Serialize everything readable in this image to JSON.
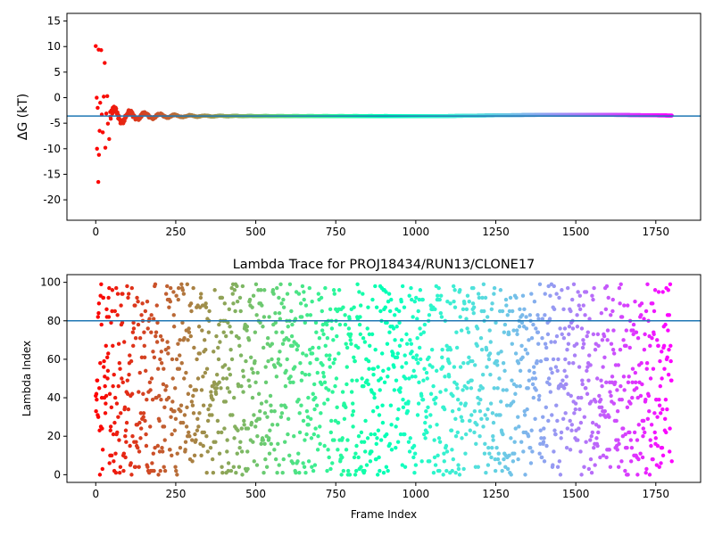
{
  "chart_data": [
    {
      "type": "scatter",
      "title": "",
      "xlabel": "",
      "ylabel": "ΔG (kT)",
      "xlim": [
        -90,
        1890
      ],
      "ylim": [
        -24,
        16.5
      ],
      "xticks": [
        0,
        250,
        500,
        750,
        1000,
        1250,
        1500,
        1750
      ],
      "yticks": [
        -20,
        -15,
        -10,
        -5,
        0,
        5,
        10,
        15
      ],
      "grid": false,
      "colormap": "rainbow (frame index)",
      "reference_line": {
        "y": -3.6,
        "color": "#1f77b4"
      },
      "x_range": [
        0,
        1800
      ],
      "series": [
        {
          "description_points": [
            {
              "x": 0,
              "y": 10.1
            },
            {
              "x": 3,
              "y": 0
            },
            {
              "x": 4,
              "y": -10
            },
            {
              "x": 6,
              "y": -2
            },
            {
              "x": 8,
              "y": -16.5
            },
            {
              "x": 9,
              "y": 9.4
            },
            {
              "x": 10,
              "y": -11.2
            },
            {
              "x": 12,
              "y": -6.5
            },
            {
              "x": 14,
              "y": -1
            },
            {
              "x": 17,
              "y": 9.3
            },
            {
              "x": 19,
              "y": -3.3
            },
            {
              "x": 22,
              "y": -6.8
            },
            {
              "x": 25,
              "y": 0.2
            },
            {
              "x": 28,
              "y": 6.8
            },
            {
              "x": 30,
              "y": -9.8
            },
            {
              "x": 33,
              "y": -3.1
            },
            {
              "x": 36,
              "y": 0.3
            },
            {
              "x": 38,
              "y": -5.1
            },
            {
              "x": 42,
              "y": -8.1
            },
            {
              "x": 45,
              "y": -2.8
            }
          ],
          "convergence": {
            "start_spread": 3.5,
            "settle_frame": 450,
            "final": -3.6,
            "late_rise": [
              1500,
              -3.4
            ]
          }
        }
      ]
    },
    {
      "type": "scatter",
      "title": "Lambda Trace for PROJ18434/RUN13/CLONE17",
      "xlabel": "Frame Index",
      "ylabel": "Lambda Index",
      "xlim": [
        -90,
        1890
      ],
      "ylim": [
        -4,
        104
      ],
      "xticks": [
        0,
        250,
        500,
        750,
        1000,
        1250,
        1500,
        1750
      ],
      "yticks": [
        0,
        20,
        40,
        60,
        80,
        100
      ],
      "grid": false,
      "colormap": "rainbow (frame index)",
      "reference_line": {
        "y": 80,
        "color": "#1f77b4"
      },
      "x_range": [
        0,
        1800
      ],
      "lambda_range": [
        0,
        99
      ],
      "n_points": 1800
    }
  ]
}
